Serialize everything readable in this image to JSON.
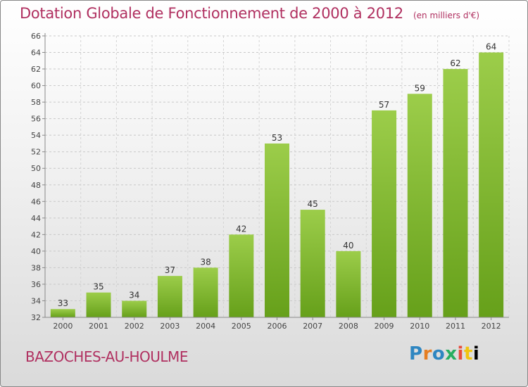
{
  "chart_data": {
    "type": "bar",
    "title": "Dotation Globale de Fonctionnement de 2000 à 2012",
    "subtitle": "(en milliers d'€)",
    "categories": [
      "2000",
      "2001",
      "2002",
      "2003",
      "2004",
      "2005",
      "2006",
      "2007",
      "2008",
      "2009",
      "2010",
      "2011",
      "2012"
    ],
    "values": [
      33,
      35,
      34,
      37,
      38,
      42,
      53,
      45,
      40,
      57,
      59,
      62,
      64
    ],
    "ylim": [
      32,
      66
    ],
    "yticks": [
      32,
      34,
      36,
      38,
      40,
      42,
      44,
      46,
      48,
      50,
      52,
      54,
      56,
      58,
      60,
      62,
      64,
      66
    ],
    "grid": true,
    "bar_color_top": "#9ccd4a",
    "bar_color_bottom": "#66a01a"
  },
  "footer": {
    "commune": "BAZOCHES-AU-HOULME",
    "logo": "Proxiti",
    "logo_letters": [
      "P",
      "r",
      "o",
      "x",
      "i",
      "t",
      "i"
    ]
  }
}
